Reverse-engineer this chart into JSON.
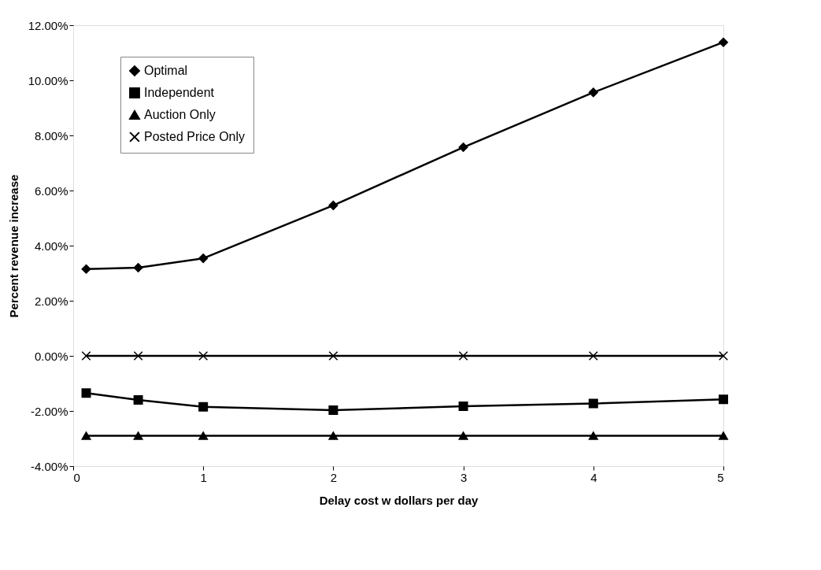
{
  "chart_data": {
    "type": "line",
    "xlabel": "Delay cost w dollars per day",
    "ylabel": "Percent revenue increase",
    "x": [
      0.1,
      0.5,
      1,
      2,
      3,
      4,
      5
    ],
    "series": [
      {
        "name": "Optimal",
        "color": "#000000",
        "marker": "diamond",
        "values": [
          3.15,
          3.2,
          3.54,
          5.46,
          7.57,
          9.56,
          11.38
        ]
      },
      {
        "name": "Independent",
        "color": "#000000",
        "marker": "square",
        "values": [
          -1.35,
          -1.6,
          -1.85,
          -1.97,
          -1.83,
          -1.73,
          -1.58
        ]
      },
      {
        "name": "Auction Only",
        "color": "#000000",
        "marker": "triangle",
        "values": [
          -2.9,
          -2.9,
          -2.9,
          -2.9,
          -2.9,
          -2.9,
          -2.9
        ]
      },
      {
        "name": "Posted Price Only",
        "color": "#000000",
        "marker": "cross",
        "values": [
          0,
          0,
          0,
          0,
          0,
          0,
          0
        ]
      }
    ],
    "xlim": [
      0,
      5
    ],
    "xticks": [
      0,
      1,
      2,
      3,
      4,
      5
    ],
    "ylim": [
      -4,
      12
    ],
    "yticks": [
      {
        "value": -4,
        "label": "-4.00%"
      },
      {
        "value": -2,
        "label": "-2.00%"
      },
      {
        "value": 0,
        "label": "0.00%"
      },
      {
        "value": 2,
        "label": "2.00%"
      },
      {
        "value": 4,
        "label": "4.00%"
      },
      {
        "value": 6,
        "label": "6.00%"
      },
      {
        "value": 8,
        "label": "8.00%"
      },
      {
        "value": 10,
        "label": "10.00%"
      },
      {
        "value": 12,
        "label": "12.00%"
      }
    ],
    "grid": false,
    "legend": "top left",
    "line_style": "solid"
  }
}
